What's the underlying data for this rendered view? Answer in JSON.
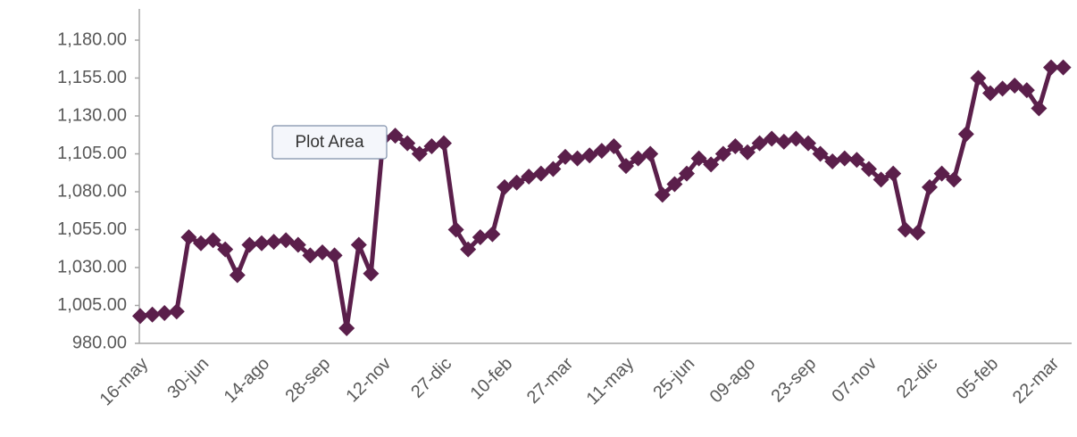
{
  "chart_data": {
    "type": "line",
    "tooltip": "Plot Area",
    "categories": [
      "16-may",
      null,
      null,
      null,
      null,
      "30-jun",
      null,
      null,
      null,
      null,
      "14-ago",
      null,
      null,
      null,
      null,
      "28-sep",
      null,
      null,
      null,
      null,
      "12-nov",
      null,
      null,
      null,
      null,
      "27-dic",
      null,
      null,
      null,
      null,
      "10-feb",
      null,
      null,
      null,
      null,
      "27-mar",
      null,
      null,
      null,
      null,
      "11-may",
      null,
      null,
      null,
      null,
      "25-jun",
      null,
      null,
      null,
      null,
      "09-ago",
      null,
      null,
      null,
      null,
      "23-sep",
      null,
      null,
      null,
      null,
      "07-nov",
      null,
      null,
      null,
      null,
      "22-dic",
      null,
      null,
      null,
      null,
      "05-feb",
      null,
      null,
      null,
      null,
      "22-mar",
      null
    ],
    "values": [
      998,
      999,
      1000,
      1001,
      1050,
      1046,
      1048,
      1042,
      1025,
      1045,
      1046,
      1047,
      1048,
      1045,
      1038,
      1040,
      1038,
      990,
      1045,
      1026,
      1115,
      1117,
      1112,
      1105,
      1110,
      1112,
      1055,
      1042,
      1050,
      1052,
      1083,
      1086,
      1090,
      1092,
      1095,
      1103,
      1102,
      1104,
      1107,
      1110,
      1097,
      1102,
      1105,
      1078,
      1085,
      1092,
      1102,
      1098,
      1105,
      1110,
      1106,
      1112,
      1115,
      1113,
      1115,
      1112,
      1105,
      1100,
      1102,
      1101,
      1095,
      1088,
      1092,
      1055,
      1053,
      1083,
      1092,
      1088,
      1118,
      1155,
      1145,
      1148,
      1150,
      1147,
      1135,
      1162,
      1162
    ],
    "color": "#5b1f4b",
    "ylim": [
      980,
      1200
    ],
    "yticks": [
      {
        "value": 980,
        "label": "980.00"
      },
      {
        "value": 1005,
        "label": "1,005.00"
      },
      {
        "value": 1030,
        "label": "1,030.00"
      },
      {
        "value": 1055,
        "label": "1,055.00"
      },
      {
        "value": 1080,
        "label": "1,080.00"
      },
      {
        "value": 1105,
        "label": "1,105.00"
      },
      {
        "value": 1130,
        "label": "1,130.00"
      },
      {
        "value": 1155,
        "label": "1,155.00"
      },
      {
        "value": 1180,
        "label": "1,180.00"
      }
    ],
    "grid": false
  }
}
